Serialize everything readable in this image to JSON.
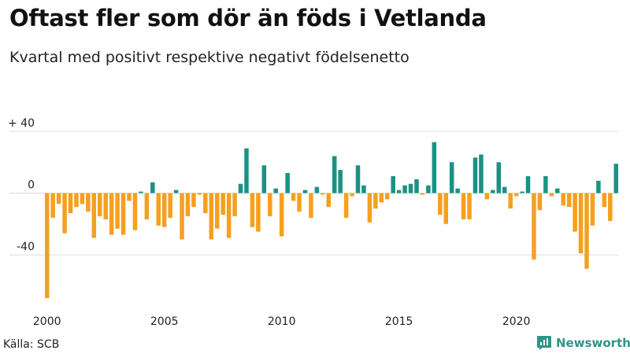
{
  "title": "Oftast fler som dör än föds i Vetlanda",
  "subtitle": "Kvartal med positivt respektive negativt födelsenetto",
  "source": "Källa: SCB",
  "brand": {
    "name": "Newsworthy"
  },
  "colors": {
    "positive": "#1a9283",
    "negative": "#f5a01f",
    "grid": "#dddddd",
    "brand": "#2e9486"
  },
  "chart_data": {
    "type": "bar",
    "title": "Oftast fler som dör än föds i Vetlanda",
    "subtitle": "Kvartal med positivt respektive negativt födelsenetto",
    "xlabel": "",
    "ylabel": "",
    "ylim": [
      -70,
      40
    ],
    "yticks": [
      {
        "value": 40,
        "label": "+ 40"
      },
      {
        "value": 0,
        "label": "0"
      },
      {
        "value": -40,
        "label": "-40"
      }
    ],
    "xticks": [
      {
        "index": 0,
        "label": "2000"
      },
      {
        "index": 20,
        "label": "2005"
      },
      {
        "index": 40,
        "label": "2010"
      },
      {
        "index": 60,
        "label": "2015"
      },
      {
        "index": 80,
        "label": "2020"
      }
    ],
    "grid": true,
    "first_period": "2000 Q1",
    "values": [
      -68,
      -16,
      -7,
      -26,
      -13,
      -9,
      -7,
      -12,
      -29,
      -15,
      -17,
      -27,
      -23,
      -27,
      -5,
      -24,
      1,
      -17,
      7,
      -21,
      -22,
      -16,
      2,
      -30,
      -15,
      -9,
      -1,
      -13,
      -30,
      -23,
      -14,
      -29,
      -15,
      6,
      29,
      -22,
      -25,
      18,
      -15,
      3,
      -28,
      13,
      -5,
      -12,
      2,
      -16,
      4,
      -1,
      -9,
      24,
      15,
      -16,
      -2,
      18,
      5,
      -19,
      -10,
      -6,
      -4,
      11,
      2,
      5,
      6,
      9,
      -1,
      5,
      33,
      -14,
      -20,
      20,
      3,
      -17,
      -17,
      23,
      25,
      -4,
      2,
      20,
      4,
      -10,
      -2,
      1,
      11,
      -43,
      -11,
      11,
      -2,
      3,
      -8,
      -9,
      -25,
      -39,
      -49,
      -21,
      8,
      -9,
      -18,
      19
    ]
  }
}
